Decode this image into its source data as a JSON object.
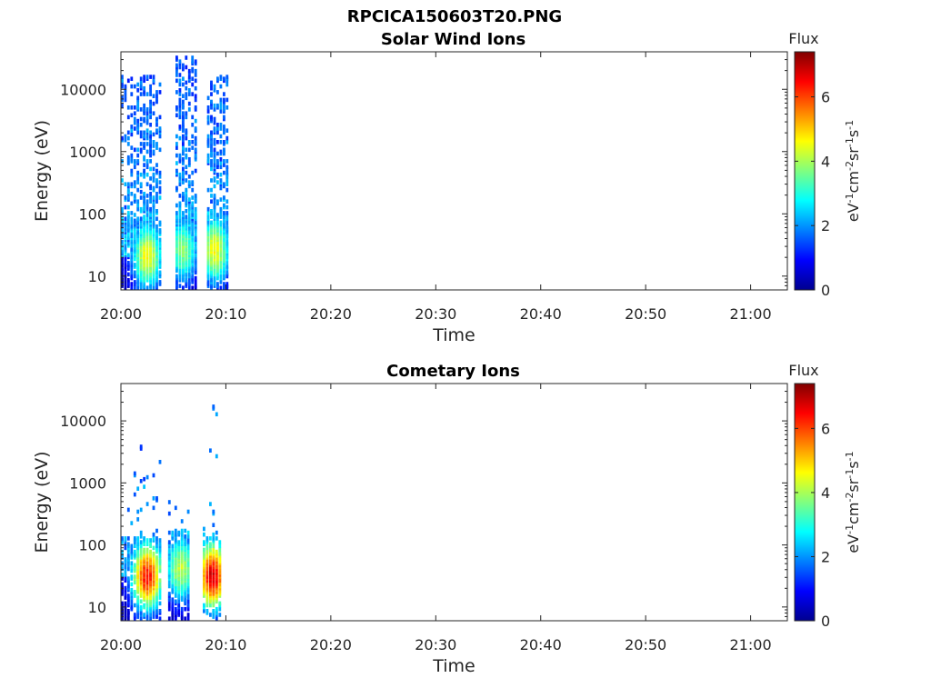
{
  "figure_title": "RPCICA150603T20.PNG",
  "chart_data": [
    {
      "type": "heatmap",
      "title": "Solar Wind Ions",
      "xlabel": "Time",
      "ylabel": "Energy (eV)",
      "x_ticks": [
        "20:00",
        "20:10",
        "20:20",
        "20:30",
        "20:40",
        "20:50",
        "21:00"
      ],
      "x_range_minutes": [
        0,
        63.5
      ],
      "y_scale": "log",
      "y_ticks": [
        10,
        100,
        1000,
        10000
      ],
      "ylim": [
        6,
        40000
      ],
      "colorbar": {
        "title": "Flux",
        "label": "eV-1cm-2sr-1s-1",
        "ticks": [
          0,
          2,
          4,
          6
        ],
        "range": [
          0,
          7.4
        ]
      },
      "bursts": [
        {
          "start_min": 0.0,
          "end_min": 3.6,
          "peak_min": 2.4,
          "peak_energy_eV": 20,
          "peak_flux": 4.6,
          "max_energy_eV": 15000
        },
        {
          "start_min": 5.2,
          "end_min": 7.0,
          "peak_min": 5.8,
          "peak_energy_eV": 25,
          "peak_flux": 3.8,
          "max_energy_eV": 31000
        },
        {
          "start_min": 8.2,
          "end_min": 10.1,
          "peak_min": 8.8,
          "peak_energy_eV": 25,
          "peak_flux": 4.6,
          "max_energy_eV": 15000
        }
      ]
    },
    {
      "type": "heatmap",
      "title": "Cometary Ions",
      "xlabel": "Time",
      "ylabel": "Energy (eV)",
      "x_ticks": [
        "20:00",
        "20:10",
        "20:20",
        "20:30",
        "20:40",
        "20:50",
        "21:00"
      ],
      "x_range_minutes": [
        0,
        63.5
      ],
      "y_scale": "log",
      "y_ticks": [
        10,
        100,
        1000,
        10000
      ],
      "ylim": [
        6,
        40000
      ],
      "colorbar": {
        "title": "Flux",
        "label": "eV-1cm-2sr-1s-1",
        "ticks": [
          0,
          2,
          4,
          6
        ],
        "range": [
          0,
          7.4
        ]
      },
      "bursts": [
        {
          "start_min": 0.0,
          "end_min": 3.6,
          "peak_min": 2.4,
          "peak_energy_eV": 30,
          "peak_flux": 6.4,
          "max_energy_eV": 4000
        },
        {
          "start_min": 4.5,
          "end_min": 6.5,
          "peak_min": 5.6,
          "peak_energy_eV": 40,
          "peak_flux": 4.2,
          "max_energy_eV": 500
        },
        {
          "start_min": 7.8,
          "end_min": 9.6,
          "peak_min": 8.6,
          "peak_energy_eV": 30,
          "peak_flux": 6.8,
          "max_energy_eV": 27000
        }
      ]
    }
  ]
}
